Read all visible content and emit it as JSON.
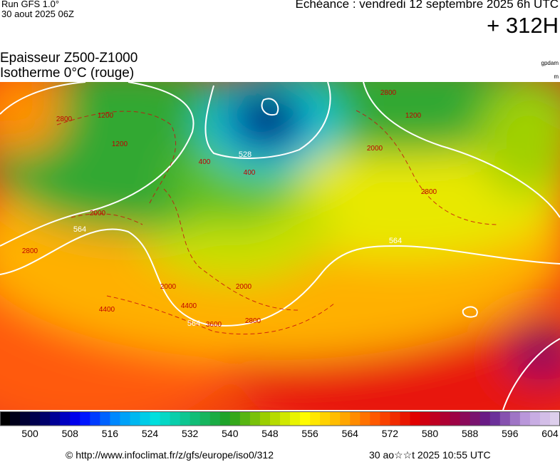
{
  "header": {
    "run": "Run GFS 1.0°",
    "run_date": "30 aout 2025 06Z",
    "echeance": "Echéance : vendredi 12 septembre 2025 6h UTC",
    "lead": "+ 312H",
    "title": "Epaisseur Z500-Z1000",
    "subtitle": "Isotherme 0°C (rouge)",
    "unit_thickness": "gpdam",
    "unit_iso": "m"
  },
  "map": {
    "white_labels": [
      "528",
      "564",
      "564",
      "564"
    ],
    "red_labels": [
      "1200",
      "1200",
      "2800",
      "2000",
      "2000",
      "2800",
      "2800",
      "400",
      "400",
      "2000",
      "4400",
      "3600",
      "2800",
      "2000",
      "2800",
      "4400",
      "1200"
    ]
  },
  "colorbar": {
    "lim": [
      494,
      606
    ],
    "step": 2,
    "ticks": [
      500,
      508,
      516,
      524,
      532,
      540,
      548,
      556,
      564,
      572,
      580,
      588,
      596,
      604
    ],
    "colors": [
      "#000000",
      "#000060",
      "#0000ff",
      "#0090ff",
      "#00e0e0",
      "#10c080",
      "#20a020",
      "#a0d000",
      "#ffff00",
      "#ffb000",
      "#ff5000",
      "#e00000",
      "#a00040",
      "#602090",
      "#c0a0e0",
      "#e8e0f0"
    ]
  },
  "footer": {
    "url": "© http://www.infoclimat.fr/z/gfs/europe/iso0/312",
    "generated": "30 ao☆☆t 2025 10:55 UTC"
  }
}
